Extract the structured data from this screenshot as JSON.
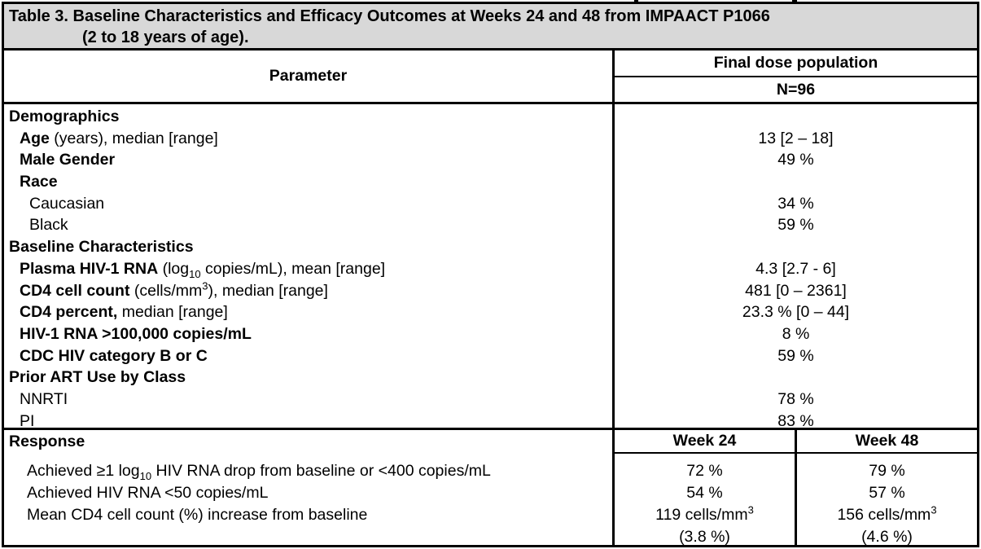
{
  "title": {
    "line1": "Table 3. Baseline Characteristics and Efficacy Outcomes at Weeks 24 and 48 from IMPAACT P1066",
    "line2": "(2 to 18 years of age)."
  },
  "header": {
    "parameter_label": "Parameter",
    "population_label": "Final dose population",
    "n_label": "N=96"
  },
  "body_rows": [
    {
      "indent": 0,
      "label": [
        {
          "t": "Demographics",
          "b": true
        }
      ],
      "value": []
    },
    {
      "indent": 1,
      "label": [
        {
          "t": "Age",
          "b": true
        },
        {
          "t": " (years), median [range]"
        }
      ],
      "value": [
        {
          "t": "13 [2 – 18]"
        }
      ]
    },
    {
      "indent": 1,
      "label": [
        {
          "t": "Male Gender",
          "b": true
        }
      ],
      "value": [
        {
          "t": "49 %"
        }
      ]
    },
    {
      "indent": 1,
      "label": [
        {
          "t": "Race",
          "b": true
        }
      ],
      "value": []
    },
    {
      "indent": 2,
      "label": [
        {
          "t": "Caucasian"
        }
      ],
      "value": [
        {
          "t": "34 %"
        }
      ]
    },
    {
      "indent": 2,
      "label": [
        {
          "t": "Black"
        }
      ],
      "value": [
        {
          "t": "59 %"
        }
      ]
    },
    {
      "indent": 0,
      "label": [
        {
          "t": "Baseline Characteristics",
          "b": true
        }
      ],
      "value": []
    },
    {
      "indent": 1,
      "label": [
        {
          "t": "Plasma HIV-1 RNA",
          "b": true
        },
        {
          "t": " (log"
        },
        {
          "t": "10",
          "sub": true
        },
        {
          "t": " copies/mL), mean [range]"
        }
      ],
      "value": [
        {
          "t": "4.3 [2.7 - 6]"
        }
      ]
    },
    {
      "indent": 1,
      "label": [
        {
          "t": "CD4 cell count",
          "b": true
        },
        {
          "t": " (cells/mm"
        },
        {
          "t": "3",
          "sup": true
        },
        {
          "t": "), median [range]"
        }
      ],
      "value": [
        {
          "t": "481 [0 – 2361]"
        }
      ]
    },
    {
      "indent": 1,
      "label": [
        {
          "t": "CD4 percent,",
          "b": true
        },
        {
          "t": " median [range]"
        }
      ],
      "value": [
        {
          "t": "23.3 % [0 – 44]"
        }
      ]
    },
    {
      "indent": 1,
      "label": [
        {
          "t": "HIV-1 RNA >100,000 copies/mL",
          "b": true
        }
      ],
      "value": [
        {
          "t": "8 %"
        }
      ]
    },
    {
      "indent": 1,
      "label": [
        {
          "t": "CDC HIV category B or C",
          "b": true
        }
      ],
      "value": [
        {
          "t": "59 %"
        }
      ]
    },
    {
      "indent": 0,
      "label": [
        {
          "t": "Prior ART Use by Class",
          "b": true
        }
      ],
      "value": []
    },
    {
      "indent": 1,
      "label": [
        {
          "t": "NNRTI"
        }
      ],
      "value": [
        {
          "t": "78 %"
        }
      ]
    },
    {
      "indent": 1,
      "label": [
        {
          "t": "PI"
        }
      ],
      "value": [
        {
          "t": "83 %"
        }
      ]
    }
  ],
  "response": {
    "label": "Response",
    "week24_label": "Week 24",
    "week48_label": "Week 48",
    "rows": [
      {
        "label": [
          {
            "t": "Achieved ≥1 log"
          },
          {
            "t": "10",
            "sub": true
          },
          {
            "t": " HIV RNA drop from baseline or <400 copies/mL"
          }
        ],
        "week24": [
          {
            "t": "72 %"
          }
        ],
        "week48": [
          {
            "t": "79 %"
          }
        ]
      },
      {
        "label": [
          {
            "t": "Achieved HIV RNA <50 copies/mL"
          }
        ],
        "week24": [
          {
            "t": "54 %"
          }
        ],
        "week48": [
          {
            "t": "57 %"
          }
        ]
      },
      {
        "label": [
          {
            "t": "Mean CD4 cell count (%) increase from baseline"
          }
        ],
        "week24": [
          {
            "t": "119 cells/mm"
          },
          {
            "t": "3",
            "sup": true
          },
          {
            "br": true
          },
          {
            "t": "(3.8 %)"
          }
        ],
        "week48": [
          {
            "t": "156 cells/mm"
          },
          {
            "t": "3",
            "sup": true
          },
          {
            "br": true
          },
          {
            "t": "(4.6 %)"
          }
        ]
      }
    ]
  },
  "colors": {
    "title_bg": "#d8d8d8",
    "border": "#000000",
    "background": "#ffffff"
  }
}
